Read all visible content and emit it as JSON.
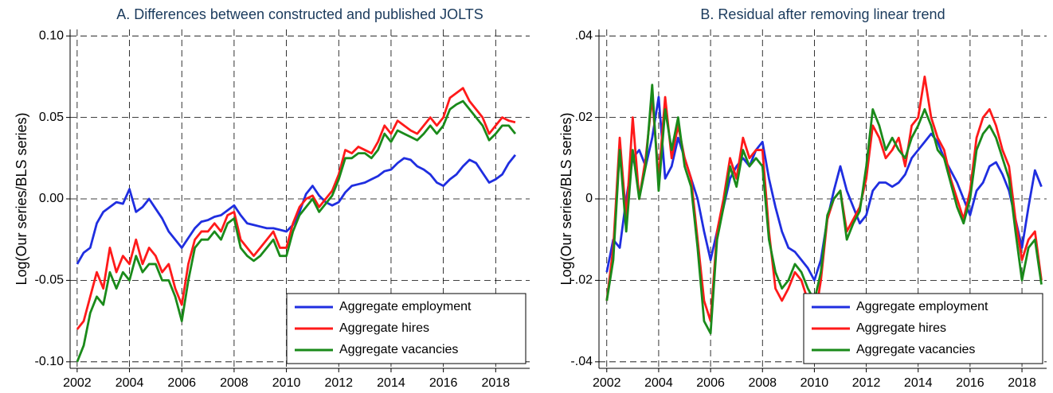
{
  "chart_data": [
    {
      "type": "line",
      "title": "A. Differences between constructed and published JOLTS",
      "y_label": "Log(Our series/BLS series)",
      "x": [
        2002,
        2002.25,
        2002.5,
        2002.75,
        2003,
        2003.25,
        2003.5,
        2003.75,
        2004,
        2004.25,
        2004.5,
        2004.75,
        2005,
        2005.25,
        2005.5,
        2005.75,
        2006,
        2006.25,
        2006.5,
        2006.75,
        2007,
        2007.25,
        2007.5,
        2007.75,
        2008,
        2008.25,
        2008.5,
        2008.75,
        2009,
        2009.25,
        2009.5,
        2009.75,
        2010,
        2010.25,
        2010.5,
        2010.75,
        2011,
        2011.25,
        2011.5,
        2011.75,
        2012,
        2012.25,
        2012.5,
        2012.75,
        2013,
        2013.25,
        2013.5,
        2013.75,
        2014,
        2014.25,
        2014.5,
        2014.75,
        2015,
        2015.25,
        2015.5,
        2015.75,
        2016,
        2016.25,
        2016.5,
        2016.75,
        2017,
        2017.25,
        2017.5,
        2017.75,
        2018,
        2018.25,
        2018.5,
        2018.75
      ],
      "series": [
        {
          "name": "Aggregate employment",
          "color": "#1f2ee0",
          "values": [
            -0.04,
            -0.033,
            -0.03,
            -0.015,
            -0.008,
            -0.005,
            -0.002,
            -0.003,
            0.006,
            -0.008,
            -0.005,
            0.0,
            -0.006,
            -0.012,
            -0.02,
            -0.025,
            -0.03,
            -0.024,
            -0.018,
            -0.014,
            -0.013,
            -0.011,
            -0.01,
            -0.007,
            -0.004,
            -0.01,
            -0.015,
            -0.016,
            -0.017,
            -0.018,
            -0.018,
            -0.019,
            -0.02,
            -0.016,
            -0.008,
            0.003,
            0.008,
            0.002,
            -0.002,
            -0.004,
            -0.002,
            0.004,
            0.008,
            0.009,
            0.01,
            0.012,
            0.014,
            0.017,
            0.018,
            0.022,
            0.025,
            0.024,
            0.02,
            0.018,
            0.015,
            0.01,
            0.008,
            0.012,
            0.015,
            0.02,
            0.024,
            0.022,
            0.016,
            0.01,
            0.012,
            0.015,
            0.022,
            0.027
          ]
        },
        {
          "name": "Aggregate hires",
          "color": "#ff1a1a",
          "values": [
            -0.08,
            -0.075,
            -0.06,
            -0.045,
            -0.055,
            -0.03,
            -0.045,
            -0.035,
            -0.04,
            -0.025,
            -0.04,
            -0.03,
            -0.035,
            -0.045,
            -0.04,
            -0.055,
            -0.065,
            -0.04,
            -0.025,
            -0.02,
            -0.02,
            -0.015,
            -0.02,
            -0.01,
            -0.008,
            -0.025,
            -0.03,
            -0.035,
            -0.03,
            -0.025,
            -0.02,
            -0.03,
            -0.03,
            -0.015,
            -0.005,
            0.0,
            0.002,
            -0.005,
            0.0,
            0.005,
            0.015,
            0.03,
            0.028,
            0.032,
            0.03,
            0.028,
            0.035,
            0.045,
            0.04,
            0.048,
            0.045,
            0.042,
            0.04,
            0.045,
            0.05,
            0.045,
            0.05,
            0.062,
            0.065,
            0.068,
            0.06,
            0.055,
            0.05,
            0.04,
            0.045,
            0.05,
            0.048,
            0.047
          ]
        },
        {
          "name": "Aggregate vacancies",
          "color": "#1a8a1a",
          "values": [
            -0.1,
            -0.09,
            -0.07,
            -0.06,
            -0.065,
            -0.045,
            -0.055,
            -0.045,
            -0.05,
            -0.035,
            -0.045,
            -0.04,
            -0.04,
            -0.05,
            -0.05,
            -0.06,
            -0.075,
            -0.05,
            -0.03,
            -0.025,
            -0.025,
            -0.02,
            -0.025,
            -0.015,
            -0.012,
            -0.03,
            -0.035,
            -0.038,
            -0.035,
            -0.03,
            -0.025,
            -0.035,
            -0.035,
            -0.02,
            -0.01,
            -0.005,
            0.0,
            -0.008,
            -0.003,
            0.002,
            0.012,
            0.025,
            0.025,
            0.028,
            0.028,
            0.025,
            0.03,
            0.04,
            0.035,
            0.042,
            0.04,
            0.038,
            0.036,
            0.04,
            0.045,
            0.04,
            0.045,
            0.055,
            0.058,
            0.06,
            0.055,
            0.05,
            0.045,
            0.036,
            0.04,
            0.045,
            0.045,
            0.04
          ]
        }
      ],
      "xlim": [
        2001.73,
        2019.3
      ],
      "ylim": [
        -0.104,
        0.104
      ],
      "xticks": [
        2002,
        2004,
        2006,
        2008,
        2010,
        2012,
        2014,
        2016,
        2018
      ],
      "yticks": [
        {
          "value": 0.1,
          "label": "0.10"
        },
        0.05,
        {
          "value": 0,
          "label": "0.00"
        },
        -0.05,
        {
          "value": -0.1,
          "label": "-0.10"
        }
      ],
      "grid": true,
      "legend": "lower right"
    },
    {
      "type": "line",
      "title": "B. Residual after removing linear trend",
      "y_label": "Log(Our series/BLS series)",
      "x": [
        2002,
        2002.25,
        2002.5,
        2002.75,
        2003,
        2003.25,
        2003.5,
        2003.75,
        2004,
        2004.25,
        2004.5,
        2004.75,
        2005,
        2005.25,
        2005.5,
        2005.75,
        2006,
        2006.25,
        2006.5,
        2006.75,
        2007,
        2007.25,
        2007.5,
        2007.75,
        2008,
        2008.25,
        2008.5,
        2008.75,
        2009,
        2009.25,
        2009.5,
        2009.75,
        2010,
        2010.25,
        2010.5,
        2010.75,
        2011,
        2011.25,
        2011.5,
        2011.75,
        2012,
        2012.25,
        2012.5,
        2012.75,
        2013,
        2013.25,
        2013.5,
        2013.75,
        2014,
        2014.25,
        2014.5,
        2014.75,
        2015,
        2015.25,
        2015.5,
        2015.75,
        2016,
        2016.25,
        2016.5,
        2016.75,
        2017,
        2017.25,
        2017.5,
        2017.75,
        2018,
        2018.25,
        2018.5,
        2018.75
      ],
      "series": [
        {
          "name": "Aggregate employment",
          "color": "#1f2ee0",
          "values": [
            -0.018,
            -0.01,
            -0.012,
            0.0,
            0.01,
            0.012,
            0.008,
            0.015,
            0.025,
            0.005,
            0.008,
            0.015,
            0.01,
            0.005,
            0.0,
            -0.008,
            -0.015,
            -0.008,
            -0.002,
            0.005,
            0.008,
            0.01,
            0.008,
            0.012,
            0.014,
            0.005,
            -0.002,
            -0.008,
            -0.012,
            -0.013,
            -0.015,
            -0.017,
            -0.02,
            -0.015,
            -0.005,
            0.002,
            0.008,
            0.002,
            -0.002,
            -0.006,
            -0.004,
            0.002,
            0.004,
            0.004,
            0.003,
            0.004,
            0.006,
            0.01,
            0.012,
            0.014,
            0.016,
            0.014,
            0.01,
            0.007,
            0.004,
            0.0,
            -0.004,
            0.002,
            0.004,
            0.008,
            0.009,
            0.006,
            0.002,
            -0.005,
            -0.012,
            -0.002,
            0.007,
            0.003
          ]
        },
        {
          "name": "Aggregate hires",
          "color": "#ff1a1a",
          "values": [
            -0.025,
            -0.012,
            0.015,
            -0.005,
            0.02,
            0.0,
            0.01,
            0.025,
            0.005,
            0.025,
            0.01,
            0.018,
            0.01,
            0.005,
            -0.01,
            -0.025,
            -0.03,
            -0.008,
            0.0,
            0.01,
            0.005,
            0.015,
            0.01,
            0.012,
            0.012,
            -0.008,
            -0.022,
            -0.025,
            -0.022,
            -0.018,
            -0.02,
            -0.025,
            -0.03,
            -0.02,
            -0.005,
            0.0,
            0.002,
            -0.008,
            -0.005,
            -0.002,
            0.005,
            0.018,
            0.015,
            0.01,
            0.012,
            0.015,
            0.008,
            0.018,
            0.02,
            0.03,
            0.02,
            0.015,
            0.012,
            0.005,
            0.0,
            -0.005,
            0.002,
            0.015,
            0.02,
            0.022,
            0.018,
            0.012,
            0.008,
            -0.005,
            -0.015,
            -0.01,
            -0.008,
            -0.02
          ]
        },
        {
          "name": "Aggregate vacancies",
          "color": "#1a8a1a",
          "values": [
            -0.025,
            -0.015,
            0.012,
            -0.008,
            0.012,
            0.0,
            0.008,
            0.028,
            0.002,
            0.022,
            0.012,
            0.02,
            0.008,
            0.003,
            -0.012,
            -0.03,
            -0.033,
            -0.01,
            -0.002,
            0.008,
            0.003,
            0.012,
            0.008,
            0.01,
            0.008,
            -0.01,
            -0.018,
            -0.022,
            -0.02,
            -0.016,
            -0.018,
            -0.022,
            -0.025,
            -0.018,
            -0.004,
            0.0,
            0.002,
            -0.01,
            -0.006,
            -0.003,
            0.008,
            0.022,
            0.018,
            0.012,
            0.015,
            0.012,
            0.01,
            0.015,
            0.018,
            0.022,
            0.018,
            0.012,
            0.01,
            0.004,
            -0.002,
            -0.006,
            0.0,
            0.012,
            0.016,
            0.018,
            0.015,
            0.01,
            0.005,
            -0.008,
            -0.02,
            -0.012,
            -0.01,
            -0.021
          ]
        }
      ],
      "xlim": [
        2001.7,
        2018.95
      ],
      "ylim": [
        -0.0416,
        0.0416
      ],
      "xticks": [
        2002,
        2004,
        2006,
        2008,
        2010,
        2012,
        2014,
        2016,
        2018
      ],
      "yticks": [
        {
          "value": 0.04,
          "label": ".04"
        },
        {
          "value": 0.02,
          "label": ".02"
        },
        0,
        {
          "value": -0.02,
          "label": "-.02"
        },
        {
          "value": -0.04,
          "label": "-.04"
        }
      ],
      "grid": true,
      "legend": "lower right"
    }
  ]
}
